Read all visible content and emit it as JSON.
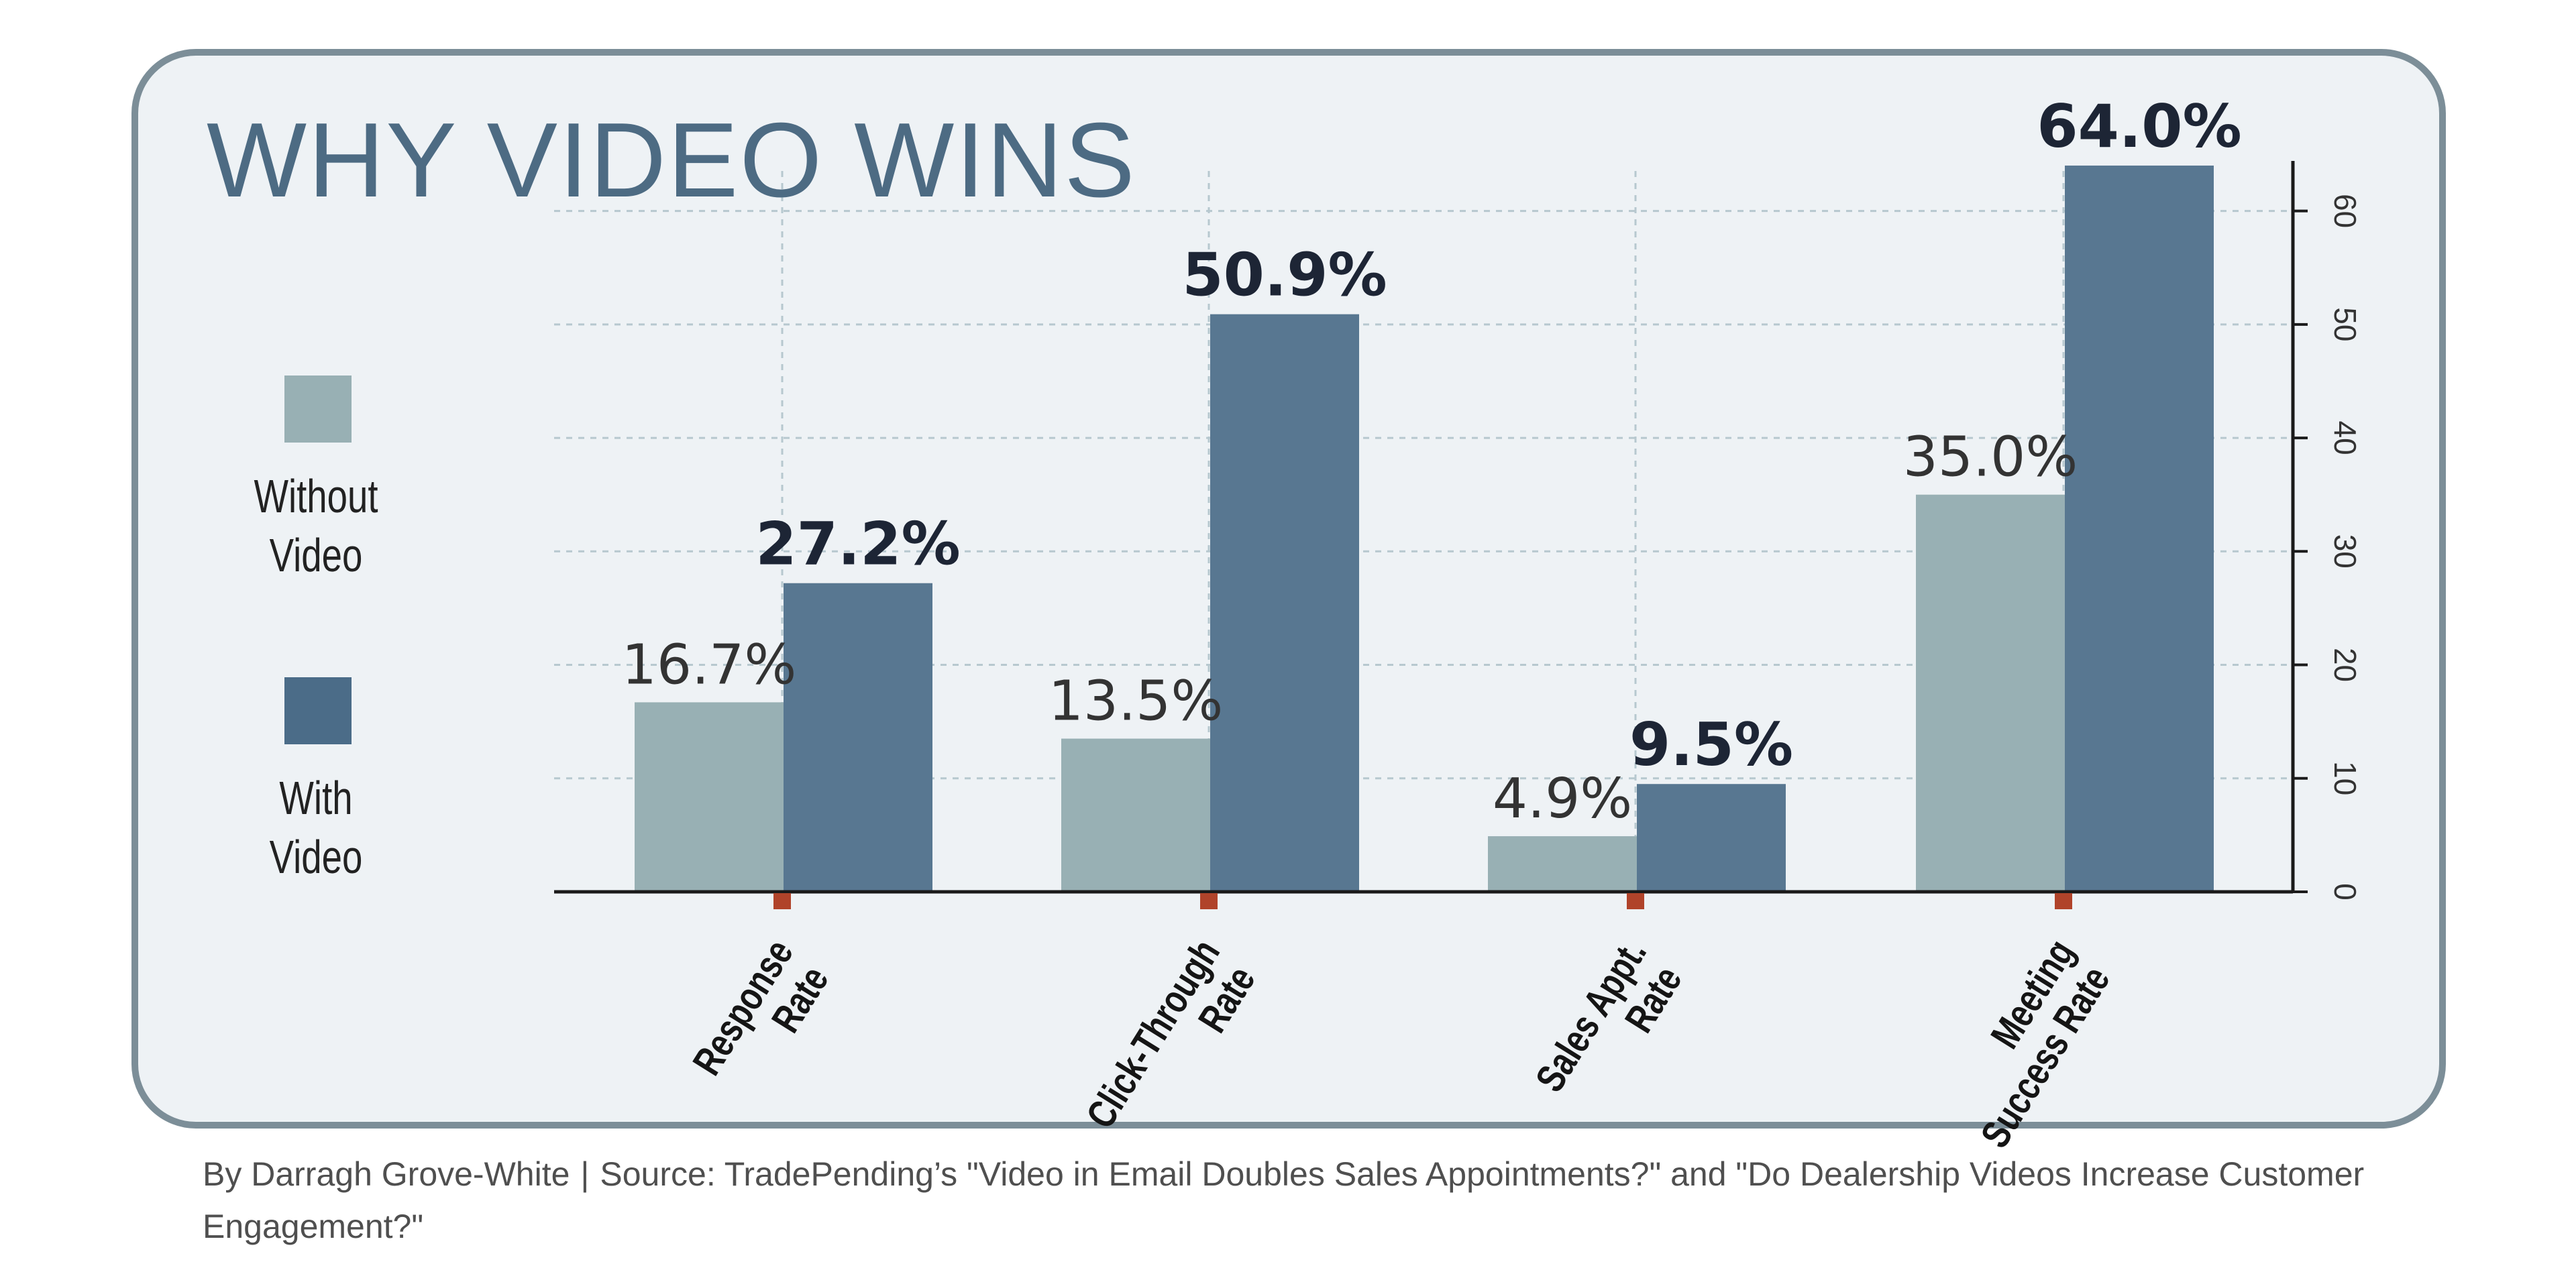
{
  "title": "WHY VIDEO WINS",
  "legend": {
    "without": {
      "line1": "Without",
      "line2": "Video",
      "color": "#98b0b4"
    },
    "with": {
      "line1": "With",
      "line2": "Video",
      "color": "#4b6c88"
    }
  },
  "chart_data": {
    "type": "bar",
    "categories": [
      [
        "Response",
        "Rate"
      ],
      [
        "Click-Through",
        "Rate"
      ],
      [
        "Sales Appt.",
        "Rate"
      ],
      [
        "Meeting",
        "Success Rate"
      ]
    ],
    "series": [
      {
        "name": "Without Video",
        "values": [
          16.7,
          13.5,
          4.9,
          35.0
        ],
        "labels": [
          "16.7%",
          "13.5%",
          "4.9%",
          "35.0%"
        ],
        "color": "#98b0b4"
      },
      {
        "name": "With Video",
        "values": [
          27.2,
          50.9,
          9.5,
          64.0
        ],
        "labels": [
          "27.2%",
          "50.9%",
          "9.5%",
          "64.0%"
        ],
        "color": "#587791"
      }
    ],
    "ylim": [
      0,
      65
    ],
    "yticks": [
      0,
      10,
      20,
      30,
      40,
      50,
      60
    ],
    "yaxis_position": "right",
    "grid": true,
    "legend_position": "left"
  },
  "footer": {
    "byline": "By Darragh Grove-White",
    "separator": "|",
    "source": "Source: TradePending’s \"Video in Email Doubles Sales Appointments?\" and \"Do Dealership Videos Increase Customer Engagement?\""
  }
}
